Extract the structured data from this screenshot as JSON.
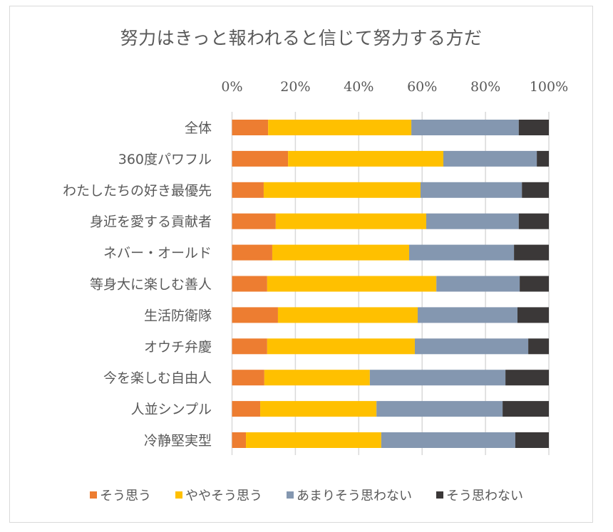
{
  "chart_data": {
    "type": "bar",
    "orientation": "horizontal",
    "stacked": "percent",
    "title": "努力はきっと報われると信じて努力する方だ",
    "xlabel": "",
    "ylabel": "",
    "xlim": [
      0,
      100
    ],
    "xticks": [
      "0%",
      "20%",
      "40%",
      "60%",
      "80%",
      "100%"
    ],
    "grid": true,
    "legend_position": "bottom",
    "categories": [
      "全体",
      "360度パワフル",
      "わたしたちの好き最優先",
      "身近を愛する貢献者",
      "ネバー・オールド",
      "等身大に楽しむ善人",
      "生活防衛隊",
      "オウチ弁慶",
      "今を楽しむ自由人",
      "人並シンプル",
      "冷静堅実型"
    ],
    "series": [
      {
        "name": "そう思う",
        "color": "#ed7d31",
        "values": [
          11.4,
          17.7,
          10.0,
          13.8,
          12.7,
          11.1,
          14.5,
          11.1,
          10.2,
          8.9,
          4.4
        ]
      },
      {
        "name": "ややそう思う",
        "color": "#ffc000",
        "values": [
          45.2,
          49.0,
          49.5,
          47.5,
          43.2,
          53.4,
          44.1,
          46.6,
          33.3,
          36.7,
          42.7
        ]
      },
      {
        "name": "あまりそう思わない",
        "color": "#8497b0",
        "values": [
          33.9,
          29.5,
          32.0,
          29.2,
          33.1,
          26.3,
          31.5,
          35.8,
          42.8,
          39.8,
          42.3
        ]
      },
      {
        "name": "そう思わない",
        "color": "#3b3838",
        "values": [
          9.5,
          3.8,
          8.5,
          9.5,
          11.0,
          9.2,
          9.9,
          6.5,
          13.7,
          14.6,
          10.6
        ]
      }
    ]
  }
}
